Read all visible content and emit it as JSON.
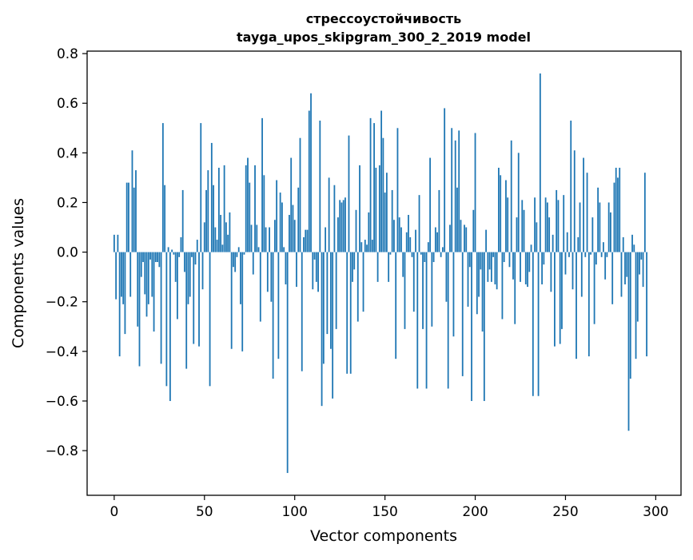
{
  "chart_data": {
    "type": "bar",
    "title_lines": [
      "стрессоустойчивость",
      "tayga_upos_skipgram_300_2_2019 model"
    ],
    "xlabel": "Vector components",
    "ylabel": "Components values",
    "xlim": [
      -15,
      314
    ],
    "ylim": [
      -0.98,
      0.81
    ],
    "xticks": [
      0,
      50,
      100,
      150,
      200,
      250,
      300
    ],
    "xtick_labels": [
      "0",
      "50",
      "100",
      "150",
      "200",
      "250",
      "300"
    ],
    "yticks": [
      -0.8,
      -0.6,
      -0.4,
      -0.2,
      0.0,
      0.2,
      0.4,
      0.6,
      0.8
    ],
    "ytick_labels": [
      "−0.8",
      "−0.6",
      "−0.4",
      "−0.2",
      "0.0",
      "0.2",
      "0.4",
      "0.6",
      "0.8"
    ],
    "bar_color": "#1f77b4",
    "grid": false,
    "values": [
      0.07,
      -0.19,
      0.07,
      -0.42,
      -0.18,
      -0.21,
      -0.33,
      0.28,
      0.28,
      -0.18,
      0.41,
      0.26,
      0.33,
      -0.3,
      -0.46,
      -0.1,
      -0.04,
      -0.17,
      -0.26,
      -0.21,
      -0.03,
      -0.18,
      -0.32,
      -0.04,
      -0.04,
      -0.06,
      -0.45,
      0.52,
      0.27,
      -0.54,
      0.02,
      -0.6,
      0.01,
      -0.01,
      -0.12,
      -0.27,
      -0.02,
      0.06,
      0.25,
      -0.08,
      -0.47,
      -0.21,
      -0.18,
      -0.02,
      -0.37,
      -0.05,
      0.05,
      -0.38,
      0.52,
      -0.15,
      0.12,
      0.25,
      0.33,
      -0.54,
      0.44,
      0.27,
      0.1,
      0.05,
      0.34,
      0.15,
      0.03,
      0.35,
      0.12,
      0.07,
      0.16,
      -0.39,
      -0.06,
      -0.08,
      -0.02,
      0.02,
      -0.21,
      -0.4,
      -0.01,
      0.35,
      0.38,
      0.28,
      0.11,
      -0.09,
      0.35,
      0.11,
      0.02,
      -0.28,
      0.54,
      0.31,
      0.1,
      -0.16,
      0.1,
      -0.2,
      -0.51,
      0.13,
      0.29,
      -0.43,
      0.24,
      0.2,
      0.02,
      -0.13,
      -0.89,
      0.15,
      0.38,
      0.19,
      0.13,
      -0.14,
      0.26,
      0.46,
      -0.48,
      0.06,
      0.09,
      0.09,
      0.57,
      0.64,
      -0.15,
      -0.03,
      -0.12,
      -0.16,
      0.53,
      -0.62,
      -0.45,
      0.1,
      -0.33,
      0.3,
      -0.39,
      -0.59,
      0.27,
      -0.31,
      0.14,
      0.21,
      0.2,
      0.21,
      0.22,
      -0.49,
      0.47,
      -0.49,
      -0.12,
      -0.07,
      0.17,
      -0.28,
      0.35,
      0.04,
      -0.24,
      0.05,
      0.03,
      0.16,
      0.54,
      0.05,
      0.52,
      0.34,
      -0.12,
      0.35,
      0.57,
      0.46,
      0.24,
      0.32,
      -0.12,
      -0.01,
      0.25,
      0.13,
      -0.43,
      0.5,
      0.14,
      0.1,
      -0.1,
      -0.31,
      0.08,
      0.15,
      0.06,
      -0.02,
      -0.24,
      0.09,
      -0.55,
      0.23,
      -0.01,
      -0.31,
      -0.04,
      -0.55,
      0.04,
      0.38,
      -0.3,
      -0.04,
      0.1,
      0.08,
      0.25,
      -0.02,
      0.02,
      0.58,
      -0.2,
      -0.55,
      0.11,
      0.5,
      -0.34,
      0.45,
      0.26,
      0.49,
      0.13,
      -0.5,
      0.11,
      0.1,
      -0.22,
      -0.06,
      -0.6,
      0.17,
      0.48,
      -0.25,
      -0.18,
      -0.07,
      -0.32,
      -0.6,
      0.09,
      -0.12,
      -0.07,
      -0.12,
      -0.02,
      -0.13,
      -0.15,
      0.34,
      0.31,
      -0.27,
      -0.04,
      0.29,
      0.22,
      -0.06,
      0.45,
      -0.11,
      -0.29,
      0.14,
      0.4,
      -0.12,
      0.21,
      0.17,
      -0.13,
      -0.14,
      -0.08,
      0.03,
      -0.58,
      0.22,
      0.12,
      -0.58,
      0.72,
      -0.13,
      -0.05,
      0.22,
      0.2,
      0.14,
      -0.16,
      0.07,
      -0.38,
      0.25,
      0.21,
      -0.37,
      -0.31,
      0.23,
      -0.09,
      0.08,
      -0.02,
      0.53,
      -0.15,
      0.41,
      -0.43,
      0.06,
      0.2,
      -0.18,
      0.38,
      -0.02,
      0.32,
      -0.42,
      -0.01,
      0.14,
      -0.29,
      -0.05,
      0.26,
      0.2,
      -0.02,
      0.04,
      -0.11,
      -0.02,
      0.2,
      0.16,
      -0.21,
      0.28,
      0.34,
      0.3,
      0.34,
      -0.18,
      0.06,
      -0.13,
      -0.1,
      -0.72,
      -0.51,
      0.07,
      0.03,
      -0.43,
      -0.28,
      -0.09,
      -0.03,
      -0.14,
      0.32,
      -0.42
    ]
  }
}
